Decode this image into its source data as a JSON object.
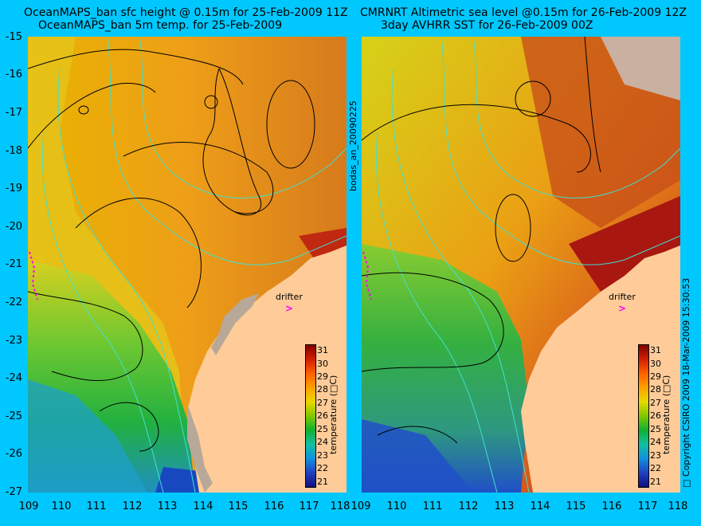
{
  "left_panel": {
    "title_line1": "OceanMAPS_ban sfc height @ 0.15m for 25-Feb-2009 11Z",
    "title_line2": "OceanMAPS_ban 5m temp. for 25-Feb-2009",
    "drifter_label": "drifter",
    "drifter_marker": ">",
    "colorbar_label": "temperature (□C)"
  },
  "right_panel": {
    "title_line1": "CMRNRT Altimetric sea level  @0.15m  for 26-Feb-2009 12Z",
    "title_line2": "3day AVHRR SST for 26-Feb-2009 00Z",
    "drifter_label": "drifter",
    "drifter_marker": ">",
    "colorbar_label": "temperature (□C)"
  },
  "side_label": "bodas_an_20090225",
  "copyright": "□ Copyright CSIRO 2009  18-Mar-2009 15:30:53",
  "axes": {
    "longitude_ticks": [
      "109",
      "110",
      "111",
      "112",
      "113",
      "114",
      "115",
      "116",
      "117",
      "118"
    ],
    "latitude_ticks": [
      "-15",
      "-16",
      "-17",
      "-18",
      "-19",
      "-20",
      "-21",
      "-22",
      "-23",
      "-24",
      "-25",
      "-26",
      "-27"
    ],
    "lon_range": [
      109,
      118
    ],
    "lat_range": [
      -27,
      -15
    ]
  },
  "colorbar": {
    "ticks": [
      "31",
      "30",
      "29",
      "28",
      "27",
      "26",
      "25",
      "24",
      "23",
      "22",
      "21"
    ],
    "range": [
      21,
      31
    ]
  },
  "colors": {
    "background": "#00c8ff",
    "land": "#ffcc99",
    "land_dark": "#b8a898",
    "contour_height": "#000000",
    "contour_bathymetry": "#40e0d0",
    "drifter": "#ff00ff"
  }
}
